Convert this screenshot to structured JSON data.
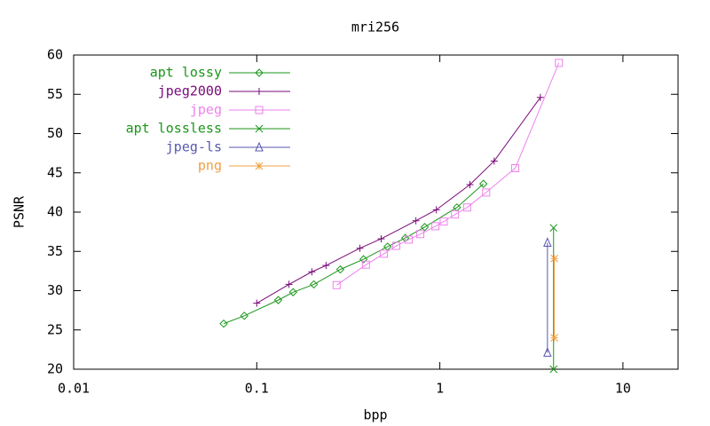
{
  "chart_data": {
    "type": "line",
    "title": "mri256",
    "x_label": "bpp",
    "y_label": "PSNR",
    "xscale": "log",
    "xlim": [
      0.01,
      20
    ],
    "xticks": [
      0.01,
      0.1,
      1,
      10
    ],
    "ylim": [
      20,
      60
    ],
    "yticks": [
      20,
      25,
      30,
      35,
      40,
      45,
      50,
      55,
      60
    ],
    "legend": "top-left",
    "series": [
      {
        "name": "apt lossy",
        "color": "#1a961a",
        "marker": "diamond",
        "x": [
          0.066,
          0.0855,
          0.131,
          0.158,
          0.205,
          0.286,
          0.383,
          0.518,
          0.647,
          0.827,
          1.24,
          1.73
        ],
        "values": [
          25.8,
          26.8,
          28.8,
          29.8,
          30.8,
          32.7,
          34.0,
          35.6,
          36.7,
          38.1,
          40.6,
          43.6
        ]
      },
      {
        "name": "jpeg2000",
        "color": "#7a0a7a",
        "marker": "plus",
        "x": [
          0.1,
          0.15,
          0.2,
          0.239,
          0.366,
          0.478,
          0.74,
          0.957,
          1.46,
          1.98,
          3.54
        ],
        "values": [
          28.4,
          30.8,
          32.4,
          33.2,
          35.4,
          36.6,
          38.9,
          40.3,
          43.5,
          46.5,
          54.6
        ]
      },
      {
        "name": "jpeg",
        "color": "#ee82ee",
        "marker": "square",
        "x": [
          0.273,
          0.395,
          0.494,
          0.578,
          0.676,
          0.782,
          0.946,
          1.05,
          1.21,
          1.41,
          1.79,
          2.58,
          4.47
        ],
        "values": [
          30.7,
          33.3,
          34.7,
          35.7,
          36.5,
          37.2,
          38.2,
          38.8,
          39.7,
          40.6,
          42.5,
          45.6,
          59.0
        ]
      },
      {
        "name": "apt lossless",
        "color": "#1a961a",
        "marker": "cross",
        "x": [
          4.18,
          4.18
        ],
        "values": [
          38.0,
          20.0
        ]
      },
      {
        "name": "jpeg-ls",
        "color": "#5858b0",
        "marker": "triangle",
        "x": [
          3.87,
          3.87
        ],
        "values": [
          36.1,
          22.1
        ]
      },
      {
        "name": "png",
        "color": "#f0a040",
        "marker": "star",
        "x": [
          4.22,
          4.22
        ],
        "values": [
          34.1,
          24.0
        ]
      }
    ]
  }
}
